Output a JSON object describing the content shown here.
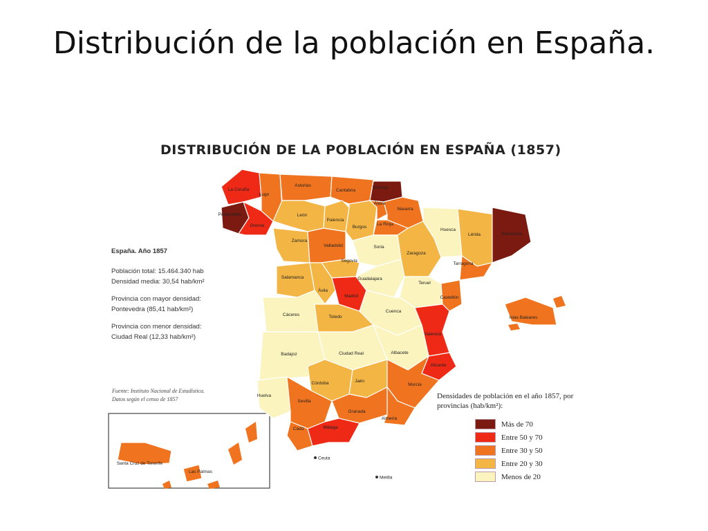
{
  "slide": {
    "title": "Distribución de la población en España."
  },
  "map": {
    "title": "DISTRIBUCIÓN DE LA POBLACIÓN EN ESPAÑA (1857)",
    "stats": {
      "heading": "España. Año 1857",
      "total": "Población total: 15.464.340 hab",
      "density": "Densidad media: 30,54 hab/km²",
      "max_label": "Provincia con mayor densidad:",
      "max_value": "Pontevedra (85,41 hab/km²)",
      "min_label": "Provincia con menor densidad:",
      "min_value": "Ciudad Real (12,33 hab/km²)"
    },
    "source_line1": "Fuente: Instituto Nacional de Estadística.",
    "source_line2": "Datos según el censo de 1857",
    "legend": {
      "title": "Densidades de población en el año 1857, por provincias (hab/km²):",
      "items": [
        {
          "label": "Más de 70",
          "color": "#7b1a10"
        },
        {
          "label": "Entre 50 y 70",
          "color": "#ee2a17"
        },
        {
          "label": "Entre 30 y 50",
          "color": "#f0741f"
        },
        {
          "label": "Entre 20 y 30",
          "color": "#f3b544"
        },
        {
          "label": "Menos de 20",
          "color": "#fbf4bf"
        }
      ]
    },
    "provinces": [
      {
        "name": "La Coruña",
        "class": "Entre 50 y 70"
      },
      {
        "name": "Lugo",
        "class": "Entre 30 y 50"
      },
      {
        "name": "Asturias",
        "class": "Entre 30 y 50"
      },
      {
        "name": "Cantabria",
        "class": "Entre 30 y 50"
      },
      {
        "name": "Vizcaya",
        "class": "Más de 70"
      },
      {
        "name": "Pontevedra",
        "class": "Más de 70"
      },
      {
        "name": "Orense",
        "class": "Entre 50 y 70"
      },
      {
        "name": "León",
        "class": "Entre 20 y 30"
      },
      {
        "name": "Palencia",
        "class": "Entre 20 y 30"
      },
      {
        "name": "Burgos",
        "class": "Entre 20 y 30"
      },
      {
        "name": "Álava",
        "class": "Entre 30 y 50"
      },
      {
        "name": "Navarra",
        "class": "Entre 30 y 50"
      },
      {
        "name": "La Rioja",
        "class": "Entre 30 y 50"
      },
      {
        "name": "Huesca",
        "class": "Menos de 20"
      },
      {
        "name": "Lérida",
        "class": "Entre 20 y 30"
      },
      {
        "name": "Zamora",
        "class": "Entre 20 y 30"
      },
      {
        "name": "Valladolid",
        "class": "Entre 30 y 50"
      },
      {
        "name": "Soria",
        "class": "Menos de 20"
      },
      {
        "name": "Zaragoza",
        "class": "Entre 20 y 30"
      },
      {
        "name": "Barcelona",
        "class": "Más de 70"
      },
      {
        "name": "Segovia",
        "class": "Entre 20 y 30"
      },
      {
        "name": "Tarragona",
        "class": "Entre 30 y 50"
      },
      {
        "name": "Salamanca",
        "class": "Entre 20 y 30"
      },
      {
        "name": "Ávila",
        "class": "Entre 20 y 30"
      },
      {
        "name": "Madrid",
        "class": "Entre 50 y 70"
      },
      {
        "name": "Guadalajara",
        "class": "Menos de 20"
      },
      {
        "name": "Teruel",
        "class": "Menos de 20"
      },
      {
        "name": "Castellón",
        "class": "Entre 30 y 50"
      },
      {
        "name": "Cáceres",
        "class": "Menos de 20"
      },
      {
        "name": "Toledo",
        "class": "Entre 20 y 30"
      },
      {
        "name": "Cuenca",
        "class": "Menos de 20"
      },
      {
        "name": "Valencia",
        "class": "Entre 50 y 70"
      },
      {
        "name": "Islas Baleares",
        "class": "Entre 30 y 50"
      },
      {
        "name": "Badajoz",
        "class": "Menos de 20"
      },
      {
        "name": "Ciudad Real",
        "class": "Menos de 20"
      },
      {
        "name": "Albacete",
        "class": "Menos de 20"
      },
      {
        "name": "Alicante",
        "class": "Entre 50 y 70"
      },
      {
        "name": "Córdoba",
        "class": "Entre 20 y 30"
      },
      {
        "name": "Jaén",
        "class": "Entre 20 y 30"
      },
      {
        "name": "Murcia",
        "class": "Entre 30 y 50"
      },
      {
        "name": "Huelva",
        "class": "Menos de 20"
      },
      {
        "name": "Sevilla",
        "class": "Entre 30 y 50"
      },
      {
        "name": "Granada",
        "class": "Entre 30 y 50"
      },
      {
        "name": "Almería",
        "class": "Entre 30 y 50"
      },
      {
        "name": "Cádiz",
        "class": "Entre 30 y 50"
      },
      {
        "name": "Málaga",
        "class": "Entre 50 y 70"
      },
      {
        "name": "Santa Cruz de Tenerife",
        "class": "Entre 30 y 50"
      },
      {
        "name": "Las Palmas",
        "class": "Entre 30 y 50"
      }
    ],
    "places": {
      "ceuta": "Ceuta",
      "melilla": "Melilla"
    }
  }
}
